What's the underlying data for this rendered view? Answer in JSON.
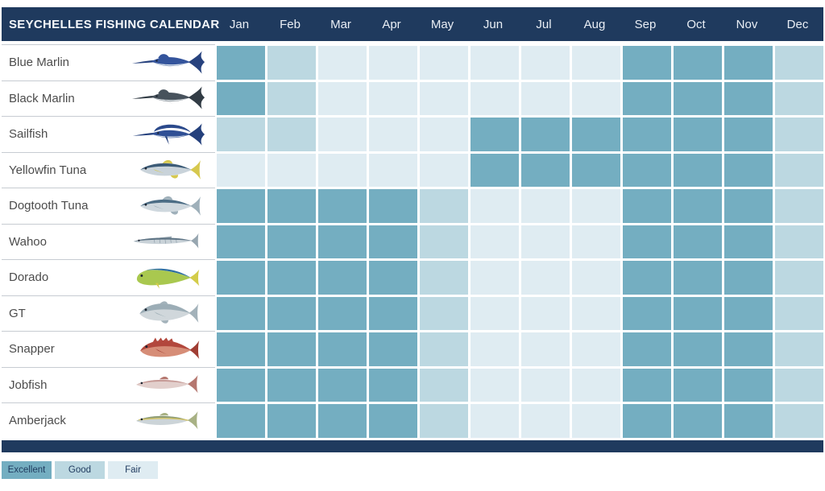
{
  "header": {
    "title": "SEYCHELLES FISHING CALENDAR"
  },
  "months": [
    "Jan",
    "Feb",
    "Mar",
    "Apr",
    "May",
    "Jun",
    "Jul",
    "Aug",
    "Sep",
    "Oct",
    "Nov",
    "Dec"
  ],
  "legend": [
    {
      "label": "Excellent",
      "key": "E"
    },
    {
      "label": "Good",
      "key": "G"
    },
    {
      "label": "Fair",
      "key": "F"
    }
  ],
  "rating_colors": {
    "E": "#74aec1",
    "G": "#bcd8e1",
    "F": "#dfecf2"
  },
  "theme": {
    "navy": "#1f3a5e"
  },
  "rows": [
    {
      "name": "Blue Marlin",
      "shape": "billfish",
      "colors": {
        "body": "#34549c",
        "belly": "#d7e0ea",
        "fin": "#27427e"
      },
      "ratings": [
        "E",
        "G",
        "F",
        "F",
        "F",
        "F",
        "F",
        "F",
        "E",
        "E",
        "E",
        "G"
      ]
    },
    {
      "name": "Black Marlin",
      "shape": "billfish",
      "colors": {
        "body": "#47525c",
        "belly": "#dbe1e5",
        "fin": "#323c45"
      },
      "ratings": [
        "E",
        "G",
        "F",
        "F",
        "F",
        "F",
        "F",
        "F",
        "E",
        "E",
        "E",
        "G"
      ]
    },
    {
      "name": "Sailfish",
      "shape": "sailfish",
      "colors": {
        "body": "#2f4f95",
        "belly": "#d7e0ea",
        "fin": "#24407c",
        "sail": "#2c4a8c"
      },
      "ratings": [
        "G",
        "G",
        "F",
        "F",
        "F",
        "E",
        "E",
        "E",
        "E",
        "E",
        "E",
        "G"
      ]
    },
    {
      "name": "Yellowfin Tuna",
      "shape": "tuna",
      "colors": {
        "body": "#3c5b77",
        "belly": "#c9d3da",
        "fin": "#d6c84e"
      },
      "ratings": [
        "F",
        "F",
        "F",
        "F",
        "F",
        "E",
        "E",
        "E",
        "E",
        "E",
        "E",
        "G"
      ]
    },
    {
      "name": "Dogtooth Tuna",
      "shape": "tuna",
      "colors": {
        "body": "#4c6d85",
        "belly": "#cfd8de",
        "fin": "#9fb0ba"
      },
      "ratings": [
        "E",
        "E",
        "E",
        "E",
        "G",
        "F",
        "F",
        "F",
        "E",
        "E",
        "E",
        "G"
      ]
    },
    {
      "name": "Wahoo",
      "shape": "slender",
      "colors": {
        "body": "#5d7384",
        "belly": "#c9d2d8",
        "fin": "#97a6b0"
      },
      "ratings": [
        "E",
        "E",
        "E",
        "E",
        "G",
        "F",
        "F",
        "F",
        "E",
        "E",
        "E",
        "G"
      ]
    },
    {
      "name": "Dorado",
      "shape": "dorado",
      "colors": {
        "body": "#2e6fa0",
        "belly": "#a9c84f",
        "fin": "#d3cc49"
      },
      "ratings": [
        "E",
        "E",
        "E",
        "E",
        "G",
        "F",
        "F",
        "F",
        "E",
        "E",
        "E",
        "G"
      ]
    },
    {
      "name": "GT",
      "shape": "deep",
      "colors": {
        "body": "#93a6af",
        "belly": "#d0d7db",
        "fin": "#a3b2ba"
      },
      "ratings": [
        "E",
        "E",
        "E",
        "E",
        "G",
        "F",
        "F",
        "F",
        "E",
        "E",
        "E",
        "G"
      ]
    },
    {
      "name": "Snapper",
      "shape": "snapper",
      "colors": {
        "body": "#b2473c",
        "belly": "#d68d77",
        "fin": "#a03d33"
      },
      "ratings": [
        "E",
        "E",
        "E",
        "E",
        "G",
        "F",
        "F",
        "F",
        "E",
        "E",
        "E",
        "G"
      ]
    },
    {
      "name": "Jobfish",
      "shape": "sleek",
      "colors": {
        "body": "#c69a96",
        "belly": "#e2cfcc",
        "fin": "#b5776f"
      },
      "ratings": [
        "E",
        "E",
        "E",
        "E",
        "G",
        "F",
        "F",
        "F",
        "E",
        "E",
        "E",
        "G"
      ]
    },
    {
      "name": "Amberjack",
      "shape": "sleek",
      "colors": {
        "body": "#8d9b72",
        "belly": "#ccd4d8",
        "fin": "#a8b184",
        "stripe": "#d4c363"
      },
      "ratings": [
        "E",
        "E",
        "E",
        "E",
        "G",
        "F",
        "F",
        "F",
        "E",
        "E",
        "E",
        "G"
      ]
    }
  ]
}
